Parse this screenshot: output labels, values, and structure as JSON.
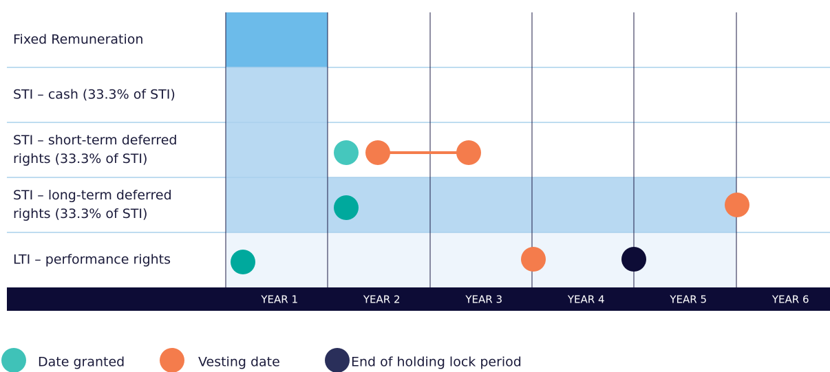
{
  "rows": [
    {
      "label": [
        "Fixed Remuneration"
      ]
    },
    {
      "label": [
        "STI – cash (33.3% of STI)"
      ]
    },
    {
      "label": [
        "STI – short-term deferred",
        "rights (33.3% of STI)"
      ]
    },
    {
      "label": [
        "STI – long-term deferred",
        "rights (33.3% of STI)"
      ]
    },
    {
      "label": [
        "LTI – performance rights"
      ]
    }
  ],
  "years": [
    "YEAR 1",
    "YEAR 2",
    "YEAR 3",
    "YEAR 4",
    "YEAR 5",
    "YEAR 6"
  ],
  "legend": [
    "Date granted",
    "Vesting date",
    "End of holding lock period"
  ]
}
